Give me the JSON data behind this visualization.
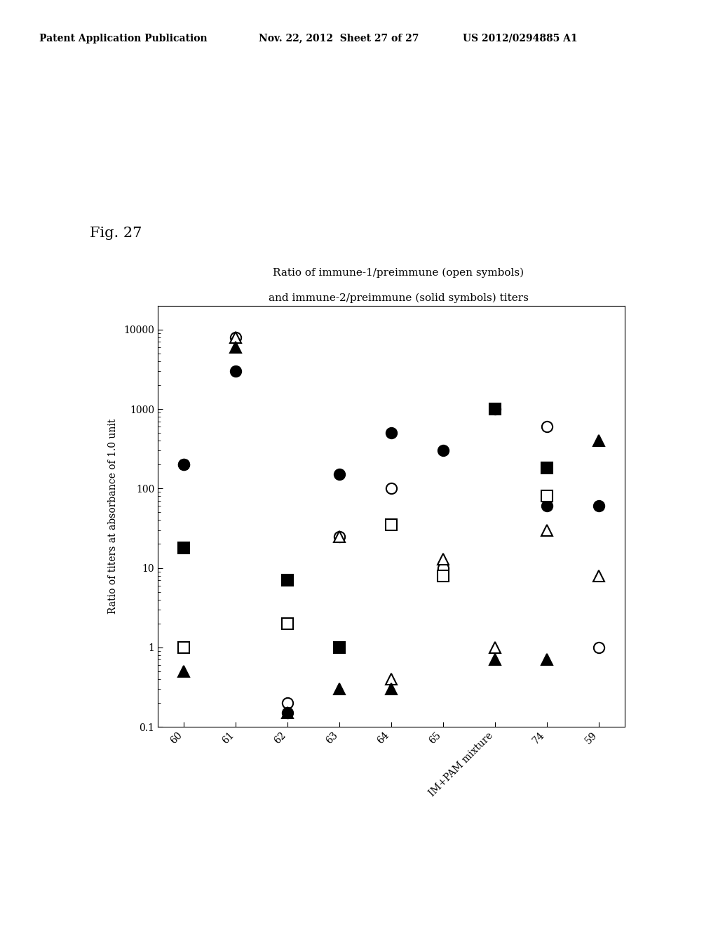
{
  "title_line1": "Ratio of immune-1/preimmune (open symbols)",
  "title_line2": "and immune-2/preimmune (solid symbols) titers",
  "ylabel": "Ratio of titers at absorbance of 1.0 unit",
  "xlabel": "",
  "categories": [
    "60",
    "61",
    "62",
    "63",
    "64",
    "65",
    "IM+PAM mixture",
    "74",
    "59"
  ],
  "ylim_log": [
    0.1,
    30000
  ],
  "fig_label": "Fig. 27",
  "header_left": "Patent Application Publication",
  "header_center": "Nov. 22, 2012  Sheet 27 of 27",
  "header_right": "US 2012/0294885 A1",
  "series": {
    "open_circle": [
      200,
      8000,
      0.2,
      25,
      100,
      10,
      null,
      600,
      1
    ],
    "solid_circle": [
      200,
      3000,
      0.15,
      150,
      500,
      300,
      1000,
      60,
      60
    ],
    "open_triangle": [
      null,
      8000,
      null,
      25,
      0.4,
      13,
      1,
      30,
      8
    ],
    "solid_triangle": [
      0.5,
      6000,
      0.15,
      0.3,
      0.3,
      null,
      0.7,
      0.7,
      400
    ],
    "open_square": [
      1,
      null,
      2,
      null,
      35,
      8,
      null,
      80,
      null
    ],
    "solid_square": [
      18,
      null,
      7,
      1,
      null,
      null,
      1000,
      180,
      null
    ]
  },
  "background_color": "#ffffff",
  "header_font_size": 10,
  "title_font_size": 11,
  "label_font_size": 10,
  "tick_font_size": 10,
  "fig_label_font_size": 15,
  "marker_size": 11
}
